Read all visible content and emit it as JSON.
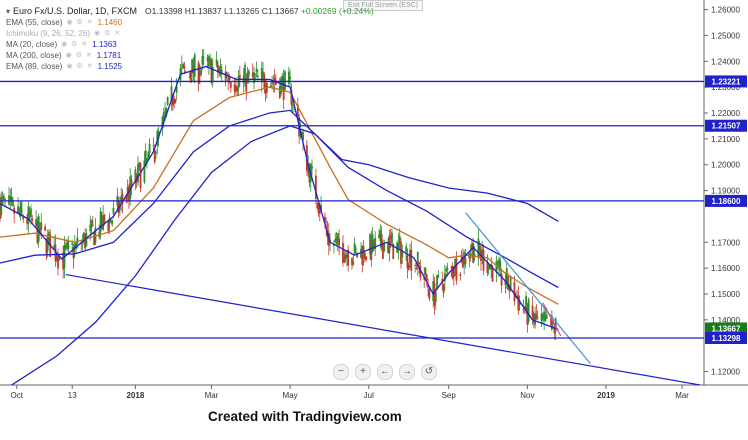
{
  "header": {
    "title": "Euro Fx/U.S. Dollar, 1D, FXCM",
    "ohlc": "O1.13398 H1.13837 L1.13265 C1.13667",
    "change": "+0.00269 (+0.24%)",
    "exit_fullscreen": "Exit Full Screen (ESC)"
  },
  "indicators": [
    {
      "label": "EMA (55, close)",
      "value": "1.1460",
      "color": "#c8701e",
      "faded": false
    },
    {
      "label": "Ichimoku (9, 26, 52, 26)",
      "value": "",
      "color": "#aaaaaa",
      "faded": true
    },
    {
      "label": "MA (20, close)",
      "value": "1.1363",
      "color": "#1e22c8",
      "faded": false
    },
    {
      "label": "MA (200, close)",
      "value": "1.1781",
      "color": "#1e22c8",
      "faded": false
    },
    {
      "label": "EMA (89, close)",
      "value": "1.1525",
      "color": "#1e22c8",
      "faded": false
    }
  ],
  "zoom_controls": [
    "−",
    "+",
    "←",
    "→",
    "↺"
  ],
  "footer": {
    "credit": "Created with Tradingview.com"
  },
  "chart_data": {
    "type": "candlestick",
    "title": "Euro Fx/U.S. Dollar, 1D, FXCM",
    "y_ticks": [
      "1.26000",
      "1.25000",
      "1.24000",
      "1.23000",
      "1.22000",
      "1.21000",
      "1.20000",
      "1.19000",
      "1.17000",
      "1.16000",
      "1.15000",
      "1.14000",
      "1.12000"
    ],
    "y_tick_values": [
      1.26,
      1.25,
      1.24,
      1.23,
      1.22,
      1.21,
      1.2,
      1.19,
      1.17,
      1.16,
      1.15,
      1.14,
      1.12
    ],
    "ylim": [
      1.1148,
      1.2637
    ],
    "x_ticks": [
      "Oct",
      "13",
      "2018",
      "Mar",
      "May",
      "Jul",
      "Sep",
      "Nov",
      "2019",
      "Mar"
    ],
    "x_tick_dates": [
      "2017-10-01",
      "2017-11-13",
      "2018-01-01",
      "2018-03-01",
      "2018-05-01",
      "2018-07-01",
      "2018-09-01",
      "2018-11-01",
      "2019-01-01",
      "2019-03-01"
    ],
    "x_range": [
      "2017-09-18",
      "2019-03-18"
    ],
    "level_labels": [
      {
        "label": "1.23221",
        "value": 1.23221
      },
      {
        "label": "1.21507",
        "value": 1.21507
      },
      {
        "label": "1.18600",
        "value": 1.186
      },
      {
        "label": "1.13667",
        "value": 1.13667,
        "current": true
      },
      {
        "label": "1.13298",
        "value": 1.13298
      }
    ],
    "horizontal_lines": [
      1.23221,
      1.21507,
      1.186,
      1.13298
    ],
    "trendlines": [
      {
        "from": [
          "2017-11-08",
          1.1575
        ],
        "to": [
          "2019-03-15",
          1.1148
        ],
        "color": "#1e22c8"
      },
      {
        "from": [
          "2018-09-14",
          1.1815
        ],
        "to": [
          "2018-12-20",
          1.123
        ],
        "color": "#4a8fd0"
      },
      {
        "from": [
          "2018-11-13",
          1.1466
        ],
        "to": [
          "2018-11-27",
          1.1338
        ],
        "color": "#e040a0"
      }
    ],
    "series": [
      {
        "name": "EMA (55, close)",
        "color": "#c8701e",
        "points": [
          [
            "2017-09-18",
            1.172
          ],
          [
            "2017-10-15",
            1.1735
          ],
          [
            "2017-11-15",
            1.17
          ],
          [
            "2017-12-15",
            1.1745
          ],
          [
            "2018-01-15",
            1.191
          ],
          [
            "2018-02-15",
            1.217
          ],
          [
            "2018-03-15",
            1.226
          ],
          [
            "2018-04-15",
            1.23
          ],
          [
            "2018-05-01",
            1.228
          ],
          [
            "2018-05-15",
            1.215
          ],
          [
            "2018-06-01",
            1.199
          ],
          [
            "2018-06-15",
            1.1865
          ],
          [
            "2018-07-15",
            1.177
          ],
          [
            "2018-08-15",
            1.169
          ],
          [
            "2018-09-01",
            1.164
          ],
          [
            "2018-09-15",
            1.165
          ],
          [
            "2018-10-01",
            1.164
          ],
          [
            "2018-10-15",
            1.158
          ],
          [
            "2018-11-01",
            1.1525
          ],
          [
            "2018-11-25",
            1.146
          ]
        ]
      },
      {
        "name": "MA (20, close)",
        "color": "#1e22c8",
        "points": [
          [
            "2017-09-18",
            1.185
          ],
          [
            "2017-10-10",
            1.179
          ],
          [
            "2017-11-05",
            1.1635
          ],
          [
            "2017-11-25",
            1.172
          ],
          [
            "2017-12-15",
            1.18
          ],
          [
            "2018-01-15",
            1.205
          ],
          [
            "2018-02-05",
            1.235
          ],
          [
            "2018-02-25",
            1.238
          ],
          [
            "2018-03-20",
            1.233
          ],
          [
            "2018-04-15",
            1.233
          ],
          [
            "2018-05-01",
            1.23
          ],
          [
            "2018-05-15",
            1.2
          ],
          [
            "2018-06-01",
            1.17
          ],
          [
            "2018-06-20",
            1.165
          ],
          [
            "2018-07-15",
            1.17
          ],
          [
            "2018-08-05",
            1.164
          ],
          [
            "2018-08-20",
            1.15
          ],
          [
            "2018-09-01",
            1.158
          ],
          [
            "2018-09-20",
            1.168
          ],
          [
            "2018-10-15",
            1.155
          ],
          [
            "2018-11-05",
            1.14
          ],
          [
            "2018-11-25",
            1.1363
          ]
        ]
      },
      {
        "name": "MA (200, close)",
        "color": "#1e22c8",
        "points": [
          [
            "2017-09-27",
            1.1148
          ],
          [
            "2017-11-01",
            1.126
          ],
          [
            "2017-12-01",
            1.139
          ],
          [
            "2018-01-01",
            1.157
          ],
          [
            "2018-02-01",
            1.179
          ],
          [
            "2018-03-01",
            1.197
          ],
          [
            "2018-04-01",
            1.209
          ],
          [
            "2018-05-01",
            1.215
          ],
          [
            "2018-05-20",
            1.212
          ],
          [
            "2018-06-10",
            1.202
          ],
          [
            "2018-07-01",
            1.2
          ],
          [
            "2018-08-01",
            1.195
          ],
          [
            "2018-09-01",
            1.191
          ],
          [
            "2018-10-01",
            1.189
          ],
          [
            "2018-11-01",
            1.185
          ],
          [
            "2018-11-25",
            1.1781
          ]
        ]
      },
      {
        "name": "EMA (89, close)",
        "color": "#1e22c8",
        "points": [
          [
            "2017-09-18",
            1.162
          ],
          [
            "2017-10-15",
            1.165
          ],
          [
            "2017-11-15",
            1.1655
          ],
          [
            "2017-12-15",
            1.17
          ],
          [
            "2018-01-15",
            1.185
          ],
          [
            "2018-02-15",
            1.205
          ],
          [
            "2018-03-15",
            1.215
          ],
          [
            "2018-04-15",
            1.22
          ],
          [
            "2018-05-01",
            1.221
          ],
          [
            "2018-05-20",
            1.212
          ],
          [
            "2018-06-15",
            1.199
          ],
          [
            "2018-07-15",
            1.19
          ],
          [
            "2018-08-15",
            1.182
          ],
          [
            "2018-09-15",
            1.172
          ],
          [
            "2018-10-15",
            1.164
          ],
          [
            "2018-11-05",
            1.158
          ],
          [
            "2018-11-25",
            1.1525
          ]
        ]
      }
    ]
  }
}
